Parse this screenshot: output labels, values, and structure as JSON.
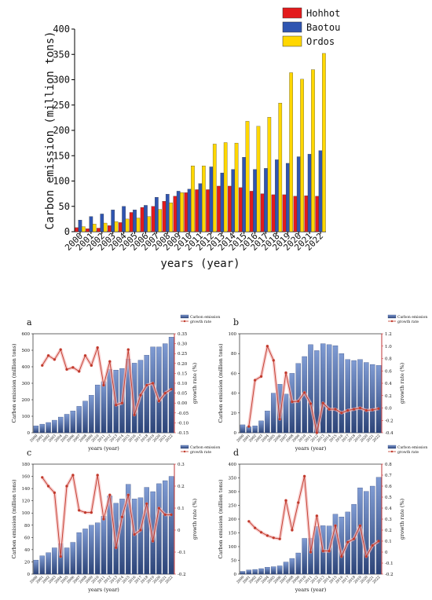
{
  "chart_data": [
    {
      "type": "bar",
      "ylabel": "Carbon emission (million tons)",
      "xlabel": "years (year)",
      "ylim": [
        0,
        400
      ],
      "yticks": [
        0,
        50,
        100,
        150,
        200,
        250,
        300,
        350,
        400
      ],
      "legend_position": "top-right",
      "categories": [
        "2000",
        "2001",
        "2002",
        "2003",
        "2004",
        "2005",
        "2006",
        "2007",
        "2008",
        "2009",
        "2010",
        "2011",
        "2012",
        "2013",
        "2014",
        "2015",
        "2016",
        "2017",
        "2018",
        "2019",
        "2020",
        "2021",
        "2022"
      ],
      "series": [
        {
          "name": "Hohhot",
          "color": "#e31a1c",
          "values": [
            8,
            6,
            7,
            12,
            18,
            38,
            48,
            50,
            60,
            70,
            77,
            83,
            83,
            90,
            90,
            87,
            80,
            75,
            73,
            73,
            70,
            71,
            70
          ]
        },
        {
          "name": "Baotou",
          "color": "#2f55b1",
          "values": [
            23,
            30,
            35,
            43,
            50,
            43,
            52,
            68,
            74,
            80,
            84,
            95,
            128,
            116,
            123,
            147,
            123,
            125,
            142,
            135,
            148,
            153,
            160
          ]
        },
        {
          "name": "Ordos",
          "color": "#ffd700",
          "values": [
            10,
            15,
            17,
            20,
            25,
            27,
            30,
            44,
            57,
            77,
            130,
            130,
            173,
            176,
            175,
            218,
            208,
            226,
            254,
            314,
            301,
            320,
            352
          ]
        }
      ]
    },
    {
      "type": "bar",
      "panel": "a",
      "ylabel": "Carbon emission (million tons)",
      "y2label": "growth rate (%)",
      "xlabel": "years (year)",
      "ylim": [
        0,
        600
      ],
      "yticks": [
        0,
        100,
        200,
        300,
        400,
        500,
        600
      ],
      "y2lim": [
        -0.15,
        0.35
      ],
      "y2ticks": [
        -0.15,
        -0.1,
        -0.05,
        0.0,
        0.05,
        0.1,
        0.15,
        0.2,
        0.25,
        0.3,
        0.35
      ],
      "y2tick_labels": [
        "-0.15",
        "-0.10",
        "-0.05",
        "0.00",
        "0.05",
        "0.10",
        "0.15",
        "0.20",
        "0.25",
        "0.30",
        "0.35"
      ],
      "legend": [
        "Carbon emission",
        "growth rate"
      ],
      "categories": [
        "2000",
        "2001",
        "2002",
        "2003",
        "2004",
        "2005",
        "2006",
        "2007",
        "2008",
        "2009",
        "2010",
        "2011",
        "2012",
        "2013",
        "2014",
        "2015",
        "2016",
        "2017",
        "2018",
        "2019",
        "2020",
        "2021",
        "2022"
      ],
      "series": [
        {
          "name": "Carbon emission",
          "values": [
            42,
            52,
            62,
            76,
            95,
            112,
            132,
            160,
            192,
            227,
            290,
            310,
            385,
            380,
            390,
            447,
            422,
            440,
            470,
            520,
            520,
            540,
            580
          ]
        },
        {
          "name": "growth rate",
          "values": [
            null,
            0.19,
            0.24,
            0.22,
            0.27,
            0.17,
            0.18,
            0.16,
            0.24,
            0.19,
            0.28,
            0.09,
            0.21,
            -0.01,
            0.0,
            0.27,
            -0.06,
            0.04,
            0.09,
            0.1,
            0.01,
            0.05,
            0.07
          ]
        }
      ]
    },
    {
      "type": "bar",
      "panel": "b",
      "ylabel": "Carbon emission (million tons)",
      "y2label": "growth rate (%)",
      "xlabel": "years (year)",
      "ylim": [
        0,
        100
      ],
      "yticks": [
        0,
        20,
        40,
        60,
        80,
        100
      ],
      "y2lim": [
        -0.4,
        1.2
      ],
      "y2ticks": [
        -0.4,
        -0.2,
        0.0,
        0.2,
        0.4,
        0.6,
        0.8,
        1.0,
        1.2
      ],
      "y2tick_labels": [
        "-0.4",
        "-0.2",
        "0.0",
        "0.2",
        "0.4",
        "0.6",
        "0.8",
        "1.0",
        "1.2"
      ],
      "legend": [
        "Carbon emission",
        "growth rate"
      ],
      "categories": [
        "2000",
        "2001",
        "2002",
        "2003",
        "2004",
        "2005",
        "2006",
        "2007",
        "2008",
        "2009",
        "2010",
        "2011",
        "2012",
        "2013",
        "2014",
        "2015",
        "2016",
        "2017",
        "2018",
        "2019",
        "2020",
        "2021",
        "2022"
      ],
      "series": [
        {
          "name": "Carbon emission",
          "values": [
            8,
            6,
            7,
            12,
            22,
            40,
            49,
            39,
            60,
            70,
            77,
            89,
            83,
            90,
            89,
            88,
            80,
            74,
            73,
            74,
            71,
            69,
            68
          ]
        },
        {
          "name": "growth rate",
          "values": [
            null,
            -0.3,
            0.45,
            0.51,
            1.0,
            0.77,
            -0.18,
            0.57,
            0.1,
            0.11,
            0.25,
            0.07,
            -0.4,
            0.08,
            -0.02,
            -0.02,
            -0.08,
            -0.04,
            -0.02,
            0.0,
            -0.04,
            -0.03,
            -0.01
          ]
        }
      ]
    },
    {
      "type": "bar",
      "panel": "c",
      "ylabel": "Carbon emission (million tons)",
      "y2label": "growth rate (%)",
      "xlabel": "years (year)",
      "ylim": [
        0,
        180
      ],
      "yticks": [
        0,
        20,
        40,
        60,
        80,
        100,
        120,
        140,
        160,
        180
      ],
      "y2lim": [
        -0.2,
        0.3
      ],
      "y2ticks": [
        -0.2,
        -0.1,
        0.0,
        0.1,
        0.2,
        0.3
      ],
      "y2tick_labels": [
        "-0.2",
        "-0.1",
        "0",
        "0.1",
        "0.2",
        "0.3"
      ],
      "legend": [
        "Carbon emission",
        "growth rate"
      ],
      "categories": [
        "2000",
        "2001",
        "2002",
        "2003",
        "2004",
        "2005",
        "2006",
        "2007",
        "2008",
        "2009",
        "2010",
        "2011",
        "2012",
        "2013",
        "2014",
        "2015",
        "2016",
        "2017",
        "2018",
        "2019",
        "2020",
        "2021",
        "2022"
      ],
      "series": [
        {
          "name": "Carbon emission",
          "values": [
            23,
            30,
            35,
            43,
            50,
            43,
            52,
            68,
            74,
            80,
            84,
            95,
            128,
            116,
            123,
            147,
            123,
            125,
            142,
            135,
            148,
            153,
            160
          ]
        },
        {
          "name": "growth rate",
          "values": [
            null,
            0.24,
            0.2,
            0.17,
            -0.12,
            0.2,
            0.25,
            0.09,
            0.08,
            0.08,
            0.25,
            0.05,
            0.16,
            -0.08,
            0.06,
            0.16,
            -0.02,
            0.0,
            0.12,
            -0.05,
            0.1,
            0.07,
            0.07
          ]
        }
      ]
    },
    {
      "type": "bar",
      "panel": "d",
      "ylabel": "Carbon emission (million tons)",
      "y2label": "growth rate (%)",
      "xlabel": "years (year)",
      "ylim": [
        0,
        400
      ],
      "yticks": [
        0,
        50,
        100,
        150,
        200,
        250,
        300,
        350,
        400
      ],
      "y2lim": [
        -0.2,
        0.8
      ],
      "y2ticks": [
        -0.2,
        -0.1,
        0.0,
        0.1,
        0.2,
        0.3,
        0.4,
        0.5,
        0.6,
        0.7,
        0.8
      ],
      "y2tick_labels": [
        "-0.2",
        "-0.1",
        "0",
        "0.1",
        "0.2",
        "0.3",
        "0.4",
        "0.5",
        "0.6",
        "0.7",
        "0.8"
      ],
      "legend": [
        "Carbon emission",
        "growth rate"
      ],
      "categories": [
        "2000",
        "2001",
        "2002",
        "2003",
        "2004",
        "2005",
        "2006",
        "2007",
        "2008",
        "2009",
        "2010",
        "2011",
        "2012",
        "2013",
        "2014",
        "2015",
        "2016",
        "2017",
        "2018",
        "2019",
        "2020",
        "2021",
        "2022"
      ],
      "series": [
        {
          "name": "Carbon emission",
          "values": [
            10,
            15,
            17,
            20,
            25,
            27,
            30,
            44,
            57,
            77,
            130,
            130,
            173,
            176,
            175,
            218,
            208,
            226,
            254,
            314,
            301,
            320,
            352
          ]
        },
        {
          "name": "growth rate",
          "values": [
            null,
            0.28,
            0.22,
            0.18,
            0.15,
            0.13,
            0.12,
            0.47,
            0.2,
            0.45,
            0.69,
            0.0,
            0.33,
            0.01,
            0.01,
            0.24,
            -0.04,
            0.09,
            0.12,
            0.24,
            -0.04,
            0.06,
            0.1
          ]
        }
      ]
    }
  ]
}
